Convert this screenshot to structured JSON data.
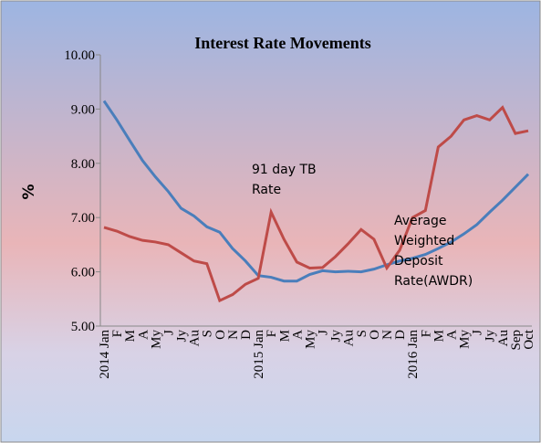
{
  "chart_data": {
    "type": "line",
    "title": "Interest Rate Movements",
    "y_label": "%",
    "categories": [
      "2014 Jan",
      "F",
      "M",
      "A",
      "My",
      "J",
      "Jy",
      "Au",
      "S",
      "O",
      "N",
      "D",
      "2015 Jan",
      "F",
      "M",
      "A",
      "My",
      "J",
      "Jy",
      "Au",
      "S",
      "O",
      "N",
      "D",
      "2016 Jan",
      "F",
      "M",
      "A",
      "My",
      "J",
      "Jy",
      "Au",
      "Sep",
      "Oct"
    ],
    "series": [
      {
        "color": "#4a7ebb",
        "values": [
          9.15,
          8.8,
          8.42,
          8.05,
          7.75,
          7.48,
          7.17,
          7.03,
          6.83,
          6.73,
          6.43,
          6.2,
          5.93,
          5.9,
          5.83,
          5.83,
          5.95,
          6.02,
          6.0,
          6.01,
          6.0,
          6.05,
          6.13,
          6.2,
          6.25,
          6.32,
          6.43,
          6.55,
          6.7,
          6.87,
          7.1,
          7.32,
          7.56,
          7.8
        ]
      },
      {
        "color": "#be4b48",
        "values": [
          6.82,
          6.75,
          6.65,
          6.58,
          6.55,
          6.5,
          6.35,
          6.2,
          6.15,
          5.47,
          5.58,
          5.77,
          5.88,
          7.1,
          6.6,
          6.18,
          6.07,
          6.08,
          6.28,
          6.52,
          6.78,
          6.6,
          6.07,
          6.4,
          7.0,
          7.13,
          8.3,
          8.5,
          8.8,
          8.88,
          8.8,
          9.03,
          8.55,
          8.6
        ]
      }
    ],
    "annotations": [
      {
        "lines": [
          "91 day TB",
          "Rate"
        ]
      },
      {
        "lines": [
          "Average",
          "Weighted",
          "Deposit",
          "Rate(AWDR)"
        ]
      }
    ],
    "ylim": [
      5,
      10
    ],
    "yticks": [
      {
        "value": 5,
        "label": "5.00"
      },
      {
        "value": 6,
        "label": "6.00"
      },
      {
        "value": 7,
        "label": "7.00"
      },
      {
        "value": 8,
        "label": "8.00"
      },
      {
        "value": 9,
        "label": "9.00"
      },
      {
        "value": 10,
        "label": "10.00"
      }
    ]
  }
}
